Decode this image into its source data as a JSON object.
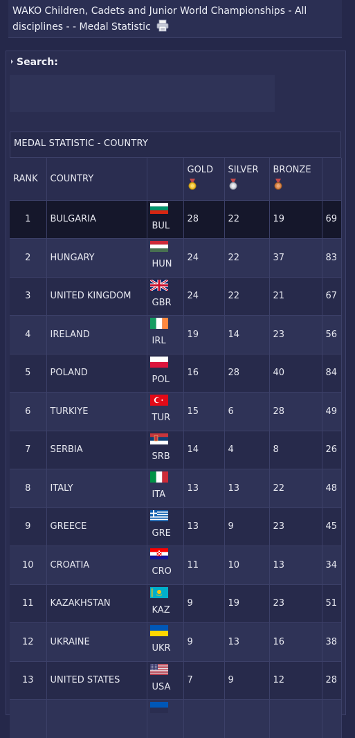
{
  "header": {
    "title": "WAKO Children, Cadets and Junior World Championships - All disciplines - - Medal Statistic"
  },
  "search": {
    "label": "Search:",
    "value": ""
  },
  "table": {
    "caption": "MEDAL STATISTIC - COUNTRY",
    "columns": {
      "rank": "RANK",
      "country": "COUNTRY",
      "gold": "GOLD",
      "silver": "SILVER",
      "bronze": "BRONZE"
    },
    "rows": [
      {
        "rank": "1",
        "country": "BULGARIA",
        "code": "BUL",
        "gold": "28",
        "silver": "22",
        "bronze": "19",
        "total": "69"
      },
      {
        "rank": "2",
        "country": "HUNGARY",
        "code": "HUN",
        "gold": "24",
        "silver": "22",
        "bronze": "37",
        "total": "83"
      },
      {
        "rank": "3",
        "country": "UNITED KINGDOM",
        "code": "GBR",
        "gold": "24",
        "silver": "22",
        "bronze": "21",
        "total": "67"
      },
      {
        "rank": "4",
        "country": "IRELAND",
        "code": "IRL",
        "gold": "19",
        "silver": "14",
        "bronze": "23",
        "total": "56"
      },
      {
        "rank": "5",
        "country": "POLAND",
        "code": "POL",
        "gold": "16",
        "silver": "28",
        "bronze": "40",
        "total": "84"
      },
      {
        "rank": "6",
        "country": "TURKIYE",
        "code": "TUR",
        "gold": "15",
        "silver": "6",
        "bronze": "28",
        "total": "49"
      },
      {
        "rank": "7",
        "country": "SERBIA",
        "code": "SRB",
        "gold": "14",
        "silver": "4",
        "bronze": "8",
        "total": "26"
      },
      {
        "rank": "8",
        "country": "ITALY",
        "code": "ITA",
        "gold": "13",
        "silver": "13",
        "bronze": "22",
        "total": "48"
      },
      {
        "rank": "9",
        "country": "GREECE",
        "code": "GRE",
        "gold": "13",
        "silver": "9",
        "bronze": "23",
        "total": "45"
      },
      {
        "rank": "10",
        "country": "CROATIA",
        "code": "CRO",
        "gold": "11",
        "silver": "10",
        "bronze": "13",
        "total": "34"
      },
      {
        "rank": "11",
        "country": "KAZAKHSTAN",
        "code": "KAZ",
        "gold": "9",
        "silver": "19",
        "bronze": "23",
        "total": "51"
      },
      {
        "rank": "12",
        "country": "UKRAINE",
        "code": "UKR",
        "gold": "9",
        "silver": "13",
        "bronze": "16",
        "total": "38"
      },
      {
        "rank": "13",
        "country": "UNITED STATES",
        "code": "USA",
        "gold": "7",
        "silver": "9",
        "bronze": "12",
        "total": "28"
      },
      {
        "rank": "",
        "country": "",
        "code": "",
        "gold": "",
        "silver": "",
        "bronze": "",
        "total": ""
      }
    ]
  },
  "icons": {
    "print": "printer-icon",
    "gold": "gold-medal-icon",
    "silver": "silver-medal-icon",
    "bronze": "bronze-medal-icon"
  },
  "colors": {
    "background": "#25284a",
    "row_highlight": "#15172b"
  }
}
